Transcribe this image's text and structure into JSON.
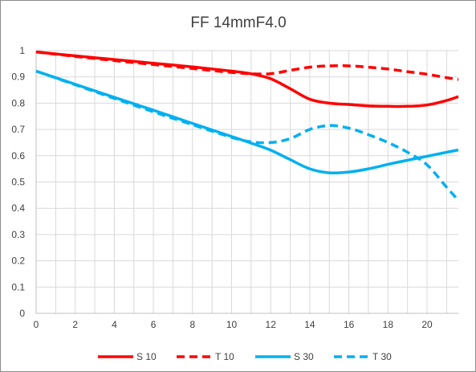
{
  "chart_data": {
    "type": "line",
    "title": "FF 14mmF4.0",
    "xlabel": "",
    "ylabel": "",
    "xlim": [
      0,
      21.6
    ],
    "ylim": [
      0,
      1
    ],
    "x_ticks": [
      "0",
      "2",
      "4",
      "6",
      "8",
      "10",
      "12",
      "14",
      "16",
      "18",
      "20"
    ],
    "y_ticks": [
      "0",
      "0.1",
      "0.2",
      "0.3",
      "0.4",
      "0.5",
      "0.6",
      "0.7",
      "0.8",
      "0.9",
      "1"
    ],
    "grid": "on",
    "legend_position": "bottom",
    "series": [
      {
        "name": "S 10",
        "color": "#ff0000",
        "style": "solid",
        "x": [
          0,
          2,
          4,
          6,
          8,
          10,
          11,
          12,
          13,
          14,
          15,
          16,
          17,
          18,
          19,
          20,
          21,
          21.6
        ],
        "y": [
          0.995,
          0.98,
          0.966,
          0.952,
          0.938,
          0.922,
          0.912,
          0.893,
          0.855,
          0.815,
          0.8,
          0.795,
          0.79,
          0.788,
          0.788,
          0.793,
          0.81,
          0.825
        ]
      },
      {
        "name": "T 10",
        "color": "#ff0000",
        "style": "dashed",
        "x": [
          0,
          2,
          4,
          6,
          8,
          10,
          11,
          12,
          13,
          14,
          15,
          16,
          17,
          18,
          19,
          20,
          21,
          21.6
        ],
        "y": [
          0.995,
          0.978,
          0.962,
          0.947,
          0.932,
          0.917,
          0.912,
          0.912,
          0.925,
          0.937,
          0.942,
          0.942,
          0.937,
          0.93,
          0.92,
          0.91,
          0.897,
          0.89
        ]
      },
      {
        "name": "S 30",
        "color": "#00b0f0",
        "style": "solid",
        "x": [
          0,
          2,
          4,
          6,
          8,
          10,
          11,
          12,
          13,
          14,
          15,
          16,
          17,
          18,
          19,
          20,
          21,
          21.6
        ],
        "y": [
          0.922,
          0.872,
          0.822,
          0.773,
          0.723,
          0.673,
          0.648,
          0.621,
          0.585,
          0.55,
          0.535,
          0.538,
          0.55,
          0.567,
          0.583,
          0.598,
          0.613,
          0.622
        ]
      },
      {
        "name": "T 30",
        "color": "#00b0f0",
        "style": "dashed",
        "x": [
          0,
          2,
          4,
          6,
          8,
          10,
          11,
          12,
          13,
          14,
          15,
          16,
          17,
          18,
          19,
          20,
          21,
          21.6
        ],
        "y": [
          0.922,
          0.87,
          0.818,
          0.767,
          0.718,
          0.67,
          0.653,
          0.65,
          0.665,
          0.7,
          0.715,
          0.705,
          0.68,
          0.65,
          0.613,
          0.565,
          0.48,
          0.43
        ]
      }
    ]
  }
}
